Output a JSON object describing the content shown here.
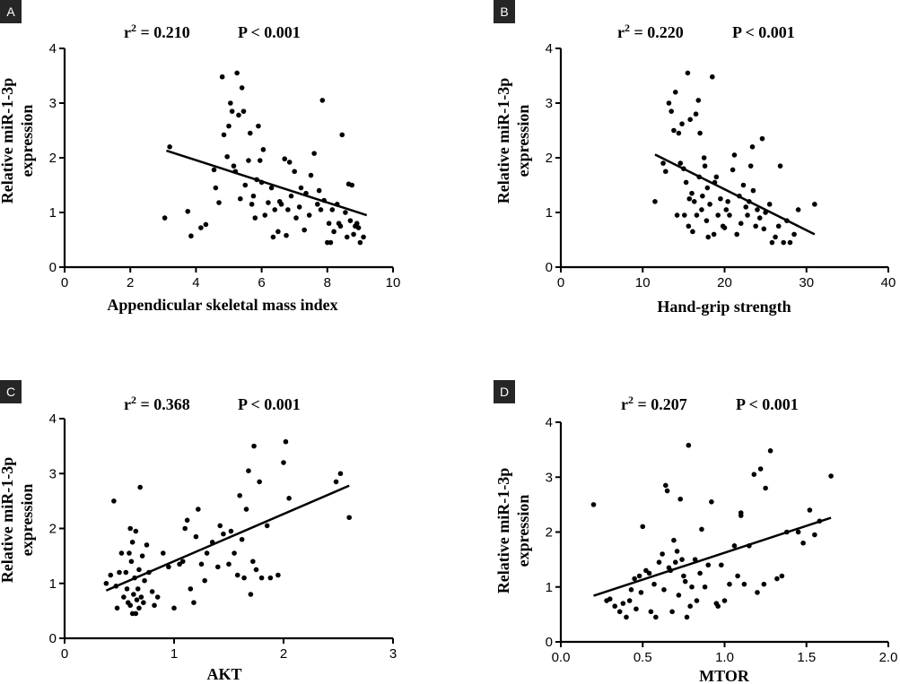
{
  "chart_data": [
    {
      "panel": "A",
      "type": "scatter",
      "xlabel": "Appendicular skeletal mass index",
      "ylabel_line1": "Relative miR-1-3p",
      "ylabel_line2": "expression",
      "r2_text": "0.210",
      "p_text": "P < 0.001",
      "xlim": [
        0,
        10
      ],
      "ylim": [
        0,
        4
      ],
      "xticks": [
        0,
        2,
        4,
        6,
        8,
        10
      ],
      "yticks": [
        0,
        1,
        2,
        3,
        4
      ],
      "xtick_labels": [
        "0",
        "2",
        "4",
        "6",
        "8",
        "10"
      ],
      "ytick_labels": [
        "0",
        "1",
        "2",
        "3",
        "4"
      ],
      "fit": [
        [
          3.1,
          2.13
        ],
        [
          9.2,
          0.95
        ]
      ],
      "points": [
        [
          3.05,
          0.9
        ],
        [
          3.2,
          2.2
        ],
        [
          3.75,
          1.02
        ],
        [
          3.85,
          0.57
        ],
        [
          4.15,
          0.72
        ],
        [
          4.3,
          0.78
        ],
        [
          4.55,
          1.78
        ],
        [
          4.6,
          1.45
        ],
        [
          4.7,
          1.18
        ],
        [
          4.8,
          3.48
        ],
        [
          4.85,
          2.42
        ],
        [
          4.95,
          2.02
        ],
        [
          5.0,
          2.58
        ],
        [
          5.05,
          3.0
        ],
        [
          5.1,
          2.85
        ],
        [
          5.15,
          1.85
        ],
        [
          5.2,
          1.75
        ],
        [
          5.25,
          3.55
        ],
        [
          5.3,
          2.78
        ],
        [
          5.35,
          1.25
        ],
        [
          5.4,
          3.28
        ],
        [
          5.45,
          2.85
        ],
        [
          5.5,
          1.5
        ],
        [
          5.6,
          1.95
        ],
        [
          5.65,
          2.45
        ],
        [
          5.7,
          1.15
        ],
        [
          5.75,
          1.3
        ],
        [
          5.8,
          0.9
        ],
        [
          5.85,
          1.6
        ],
        [
          5.9,
          2.58
        ],
        [
          5.95,
          1.95
        ],
        [
          6.0,
          1.55
        ],
        [
          6.05,
          2.15
        ],
        [
          6.1,
          0.95
        ],
        [
          6.2,
          1.18
        ],
        [
          6.3,
          1.45
        ],
        [
          6.35,
          0.55
        ],
        [
          6.4,
          1.05
        ],
        [
          6.5,
          0.65
        ],
        [
          6.55,
          1.2
        ],
        [
          6.6,
          1.15
        ],
        [
          6.7,
          1.98
        ],
        [
          6.75,
          0.58
        ],
        [
          6.8,
          1.05
        ],
        [
          6.85,
          1.92
        ],
        [
          6.9,
          1.3
        ],
        [
          7.0,
          1.75
        ],
        [
          7.05,
          0.9
        ],
        [
          7.15,
          1.1
        ],
        [
          7.2,
          1.45
        ],
        [
          7.3,
          0.68
        ],
        [
          7.35,
          1.35
        ],
        [
          7.45,
          0.95
        ],
        [
          7.5,
          1.68
        ],
        [
          7.6,
          2.08
        ],
        [
          7.7,
          1.15
        ],
        [
          7.75,
          1.4
        ],
        [
          7.8,
          1.05
        ],
        [
          7.85,
          3.05
        ],
        [
          7.9,
          1.22
        ],
        [
          8.0,
          0.45
        ],
        [
          8.05,
          0.8
        ],
        [
          8.1,
          0.45
        ],
        [
          8.15,
          1.05
        ],
        [
          8.2,
          0.65
        ],
        [
          8.3,
          1.15
        ],
        [
          8.35,
          0.8
        ],
        [
          8.4,
          0.75
        ],
        [
          8.45,
          2.42
        ],
        [
          8.55,
          1.0
        ],
        [
          8.6,
          0.55
        ],
        [
          8.65,
          1.52
        ],
        [
          8.7,
          0.85
        ],
        [
          8.75,
          1.5
        ],
        [
          8.8,
          0.6
        ],
        [
          8.85,
          0.75
        ],
        [
          8.9,
          0.8
        ],
        [
          9.0,
          0.45
        ],
        [
          9.1,
          0.55
        ],
        [
          8.95,
          0.72
        ]
      ]
    },
    {
      "panel": "B",
      "type": "scatter",
      "xlabel": "Hand-grip strength",
      "ylabel_line1": "Relative miR-1-3p",
      "ylabel_line2": "expression",
      "r2_text": "0.220",
      "p_text": "P < 0.001",
      "xlim": [
        0,
        40
      ],
      "ylim": [
        0,
        4
      ],
      "xticks": [
        0,
        10,
        20,
        30,
        40
      ],
      "yticks": [
        0,
        1,
        2,
        3,
        4
      ],
      "xtick_labels": [
        "0",
        "10",
        "20",
        "30",
        "40"
      ],
      "ytick_labels": [
        "0",
        "1",
        "2",
        "3",
        "4"
      ],
      "fit": [
        [
          11.5,
          2.06
        ],
        [
          31.0,
          0.6
        ]
      ],
      "points": [
        [
          11.5,
          1.2
        ],
        [
          12.5,
          1.9
        ],
        [
          12.8,
          1.75
        ],
        [
          13.2,
          3.0
        ],
        [
          13.5,
          2.85
        ],
        [
          13.8,
          2.5
        ],
        [
          14.0,
          3.2
        ],
        [
          14.2,
          0.95
        ],
        [
          14.4,
          2.45
        ],
        [
          14.6,
          1.9
        ],
        [
          14.8,
          2.62
        ],
        [
          15.0,
          1.8
        ],
        [
          15.1,
          0.95
        ],
        [
          15.3,
          1.55
        ],
        [
          15.5,
          3.55
        ],
        [
          15.6,
          0.75
        ],
        [
          15.7,
          1.25
        ],
        [
          15.8,
          2.7
        ],
        [
          16.0,
          1.35
        ],
        [
          16.1,
          0.65
        ],
        [
          16.3,
          1.2
        ],
        [
          16.5,
          2.8
        ],
        [
          16.6,
          0.95
        ],
        [
          16.8,
          3.05
        ],
        [
          16.9,
          1.65
        ],
        [
          17.0,
          2.45
        ],
        [
          17.2,
          1.05
        ],
        [
          17.3,
          1.3
        ],
        [
          17.5,
          2.0
        ],
        [
          17.6,
          1.85
        ],
        [
          17.8,
          0.85
        ],
        [
          17.9,
          1.45
        ],
        [
          18.0,
          0.55
        ],
        [
          18.2,
          1.15
        ],
        [
          18.5,
          3.48
        ],
        [
          18.7,
          0.6
        ],
        [
          18.8,
          1.55
        ],
        [
          19.0,
          1.65
        ],
        [
          19.2,
          0.95
        ],
        [
          19.5,
          1.25
        ],
        [
          19.8,
          0.75
        ],
        [
          20.0,
          0.72
        ],
        [
          20.2,
          1.05
        ],
        [
          20.4,
          1.2
        ],
        [
          20.6,
          0.95
        ],
        [
          21.0,
          1.78
        ],
        [
          21.2,
          2.05
        ],
        [
          21.5,
          0.6
        ],
        [
          21.8,
          1.3
        ],
        [
          22.0,
          0.8
        ],
        [
          22.3,
          1.5
        ],
        [
          22.6,
          1.1
        ],
        [
          22.8,
          0.95
        ],
        [
          23.0,
          1.2
        ],
        [
          23.2,
          1.85
        ],
        [
          23.4,
          2.2
        ],
        [
          23.5,
          1.4
        ],
        [
          23.8,
          0.75
        ],
        [
          24.0,
          1.05
        ],
        [
          24.3,
          0.9
        ],
        [
          24.6,
          2.35
        ],
        [
          24.8,
          0.7
        ],
        [
          25.0,
          1.0
        ],
        [
          25.5,
          1.15
        ],
        [
          25.8,
          0.45
        ],
        [
          26.2,
          0.55
        ],
        [
          26.6,
          0.75
        ],
        [
          26.8,
          1.85
        ],
        [
          27.2,
          0.45
        ],
        [
          27.6,
          0.85
        ],
        [
          28.0,
          0.45
        ],
        [
          28.5,
          0.6
        ],
        [
          29.0,
          1.05
        ],
        [
          31.0,
          1.15
        ]
      ]
    },
    {
      "panel": "C",
      "type": "scatter",
      "xlabel": "AKT",
      "ylabel_line1": "Relative miR-1-3p",
      "ylabel_line2": "expression",
      "r2_text": "0.368",
      "p_text": "P < 0.001",
      "xlim": [
        0,
        3
      ],
      "ylim": [
        0,
        4
      ],
      "xticks": [
        0,
        1,
        2,
        3
      ],
      "yticks": [
        0,
        1,
        2,
        3,
        4
      ],
      "xtick_labels": [
        "0",
        "1",
        "2",
        "3"
      ],
      "ytick_labels": [
        "0",
        "1",
        "2",
        "3",
        "4"
      ],
      "fit": [
        [
          0.38,
          0.87
        ],
        [
          2.6,
          2.78
        ]
      ],
      "points": [
        [
          0.38,
          1.0
        ],
        [
          0.42,
          1.15
        ],
        [
          0.45,
          2.5
        ],
        [
          0.47,
          0.95
        ],
        [
          0.48,
          0.55
        ],
        [
          0.5,
          1.2
        ],
        [
          0.52,
          1.55
        ],
        [
          0.54,
          0.75
        ],
        [
          0.56,
          1.2
        ],
        [
          0.57,
          0.9
        ],
        [
          0.58,
          0.65
        ],
        [
          0.59,
          1.55
        ],
        [
          0.6,
          0.6
        ],
        [
          0.6,
          2.0
        ],
        [
          0.61,
          1.4
        ],
        [
          0.62,
          1.75
        ],
        [
          0.62,
          0.45
        ],
        [
          0.63,
          0.8
        ],
        [
          0.64,
          1.1
        ],
        [
          0.65,
          0.45
        ],
        [
          0.65,
          1.95
        ],
        [
          0.66,
          0.7
        ],
        [
          0.67,
          0.9
        ],
        [
          0.68,
          1.25
        ],
        [
          0.68,
          0.55
        ],
        [
          0.69,
          2.75
        ],
        [
          0.7,
          0.75
        ],
        [
          0.71,
          1.5
        ],
        [
          0.72,
          0.65
        ],
        [
          0.73,
          1.05
        ],
        [
          0.75,
          1.7
        ],
        [
          0.77,
          1.2
        ],
        [
          0.8,
          0.85
        ],
        [
          0.82,
          0.6
        ],
        [
          0.85,
          0.75
        ],
        [
          0.9,
          1.55
        ],
        [
          0.95,
          1.3
        ],
        [
          1.0,
          0.55
        ],
        [
          1.05,
          1.35
        ],
        [
          1.08,
          1.4
        ],
        [
          1.1,
          2.0
        ],
        [
          1.12,
          2.15
        ],
        [
          1.15,
          0.9
        ],
        [
          1.18,
          0.65
        ],
        [
          1.2,
          1.85
        ],
        [
          1.22,
          2.35
        ],
        [
          1.25,
          1.35
        ],
        [
          1.28,
          1.05
        ],
        [
          1.3,
          1.55
        ],
        [
          1.35,
          1.75
        ],
        [
          1.4,
          1.3
        ],
        [
          1.42,
          2.05
        ],
        [
          1.45,
          1.9
        ],
        [
          1.5,
          1.35
        ],
        [
          1.52,
          1.95
        ],
        [
          1.55,
          1.55
        ],
        [
          1.58,
          1.15
        ],
        [
          1.6,
          2.6
        ],
        [
          1.62,
          1.8
        ],
        [
          1.64,
          1.1
        ],
        [
          1.66,
          2.35
        ],
        [
          1.68,
          3.05
        ],
        [
          1.7,
          0.8
        ],
        [
          1.72,
          1.4
        ],
        [
          1.73,
          3.5
        ],
        [
          1.75,
          1.25
        ],
        [
          1.78,
          2.85
        ],
        [
          1.8,
          1.1
        ],
        [
          1.85,
          2.05
        ],
        [
          1.88,
          1.1
        ],
        [
          1.95,
          1.15
        ],
        [
          2.0,
          3.2
        ],
        [
          2.02,
          3.58
        ],
        [
          2.05,
          2.55
        ],
        [
          2.48,
          2.85
        ],
        [
          2.52,
          3.0
        ],
        [
          2.6,
          2.2
        ]
      ]
    },
    {
      "panel": "D",
      "type": "scatter",
      "xlabel": "MTOR",
      "ylabel_line1": "Relative miR-1-3p",
      "ylabel_line2": "expression",
      "r2_text": "0.207",
      "p_text": "P < 0.001",
      "xlim": [
        0,
        2
      ],
      "ylim": [
        0,
        4
      ],
      "xticks": [
        0,
        0.5,
        1.0,
        1.5,
        2.0
      ],
      "yticks": [
        0,
        1,
        2,
        3,
        4
      ],
      "xtick_labels": [
        "0.0",
        "0.5",
        "1.0",
        "1.5",
        "2.0"
      ],
      "ytick_labels": [
        "0",
        "1",
        "2",
        "3",
        "4"
      ],
      "fit": [
        [
          0.2,
          0.84
        ],
        [
          1.65,
          2.26
        ]
      ],
      "points": [
        [
          0.2,
          2.5
        ],
        [
          0.28,
          0.75
        ],
        [
          0.3,
          0.78
        ],
        [
          0.33,
          0.65
        ],
        [
          0.36,
          0.55
        ],
        [
          0.38,
          0.7
        ],
        [
          0.4,
          0.45
        ],
        [
          0.42,
          0.75
        ],
        [
          0.43,
          0.95
        ],
        [
          0.45,
          1.15
        ],
        [
          0.46,
          0.6
        ],
        [
          0.48,
          1.2
        ],
        [
          0.49,
          0.9
        ],
        [
          0.5,
          2.1
        ],
        [
          0.52,
          1.3
        ],
        [
          0.54,
          1.25
        ],
        [
          0.55,
          0.55
        ],
        [
          0.57,
          1.05
        ],
        [
          0.58,
          0.45
        ],
        [
          0.6,
          1.45
        ],
        [
          0.62,
          1.6
        ],
        [
          0.63,
          0.95
        ],
        [
          0.64,
          2.85
        ],
        [
          0.65,
          2.75
        ],
        [
          0.66,
          1.35
        ],
        [
          0.67,
          1.3
        ],
        [
          0.68,
          0.55
        ],
        [
          0.69,
          1.85
        ],
        [
          0.7,
          1.45
        ],
        [
          0.71,
          1.65
        ],
        [
          0.72,
          0.85
        ],
        [
          0.73,
          2.6
        ],
        [
          0.74,
          1.5
        ],
        [
          0.75,
          1.2
        ],
        [
          0.76,
          1.1
        ],
        [
          0.77,
          0.45
        ],
        [
          0.78,
          3.58
        ],
        [
          0.79,
          0.65
        ],
        [
          0.8,
          1.0
        ],
        [
          0.82,
          1.5
        ],
        [
          0.83,
          0.75
        ],
        [
          0.85,
          1.25
        ],
        [
          0.86,
          2.05
        ],
        [
          0.88,
          1.0
        ],
        [
          0.9,
          1.4
        ],
        [
          0.92,
          2.55
        ],
        [
          0.95,
          0.7
        ],
        [
          0.96,
          0.65
        ],
        [
          0.98,
          1.4
        ],
        [
          1.0,
          0.75
        ],
        [
          1.03,
          1.05
        ],
        [
          1.06,
          1.75
        ],
        [
          1.08,
          1.2
        ],
        [
          1.1,
          2.3
        ],
        [
          1.1,
          2.35
        ],
        [
          1.12,
          1.05
        ],
        [
          1.15,
          1.75
        ],
        [
          1.18,
          3.05
        ],
        [
          1.2,
          0.9
        ],
        [
          1.22,
          3.15
        ],
        [
          1.24,
          1.05
        ],
        [
          1.25,
          2.8
        ],
        [
          1.28,
          3.48
        ],
        [
          1.32,
          1.15
        ],
        [
          1.35,
          1.2
        ],
        [
          1.38,
          2.0
        ],
        [
          1.45,
          2.0
        ],
        [
          1.48,
          1.8
        ],
        [
          1.52,
          2.4
        ],
        [
          1.55,
          1.95
        ],
        [
          1.58,
          2.2
        ],
        [
          1.65,
          3.02
        ]
      ]
    }
  ]
}
